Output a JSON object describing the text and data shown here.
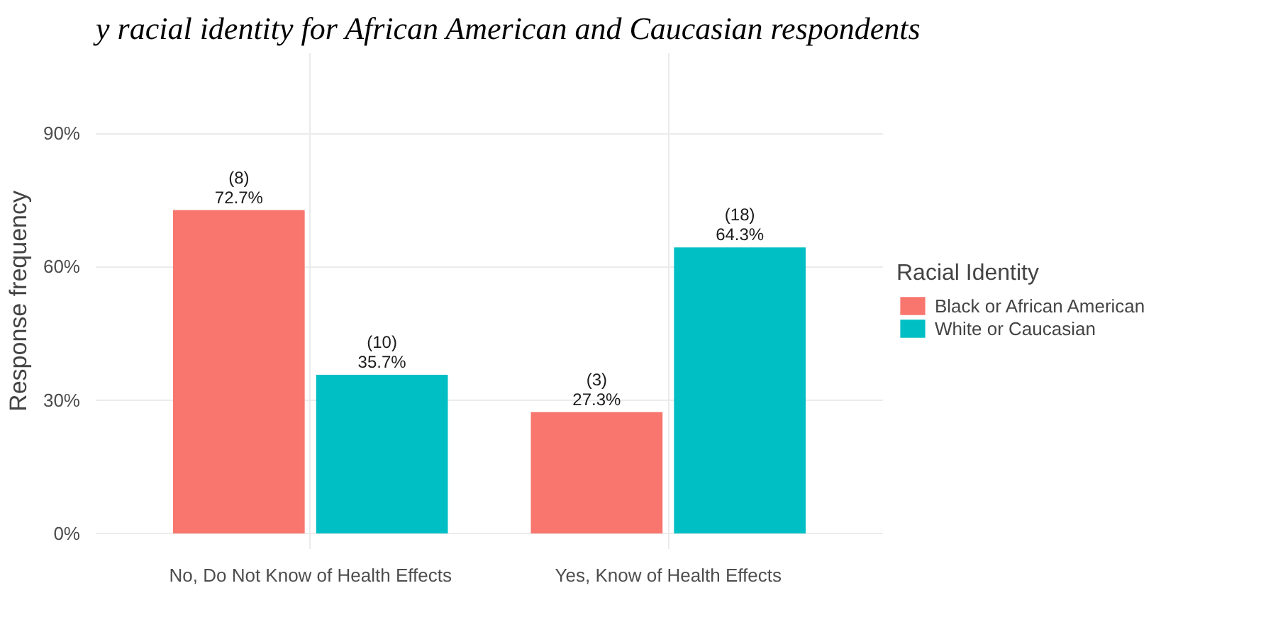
{
  "chart_data": {
    "type": "bar",
    "title": "y racial identity for African American and Caucasian respondents",
    "categories": [
      "No, Do Not Know of Health Effects",
      "Yes, Know of Health Effects"
    ],
    "series": [
      {
        "name": "Black or African American",
        "color": "#f8766d",
        "values": [
          72.7,
          27.3
        ],
        "value_labels": [
          "(8)\n72.7%",
          "(3)\n27.3%"
        ]
      },
      {
        "name": "White or Caucasian",
        "color": "#00bfc4",
        "values": [
          35.7,
          64.3
        ],
        "value_labels": [
          "(10)\n35.7%",
          "(18)\n64.3%"
        ]
      }
    ],
    "ylabel": "Response frequency",
    "legend_title": "Racial Identity",
    "legend": "right",
    "ylim": [
      -3.5,
      108
    ],
    "yticks": [
      {
        "value": 0,
        "label": "0%"
      },
      {
        "value": 30,
        "label": "30%"
      },
      {
        "value": 60,
        "label": "60%"
      },
      {
        "value": 90,
        "label": "90%"
      }
    ],
    "grid": true
  }
}
